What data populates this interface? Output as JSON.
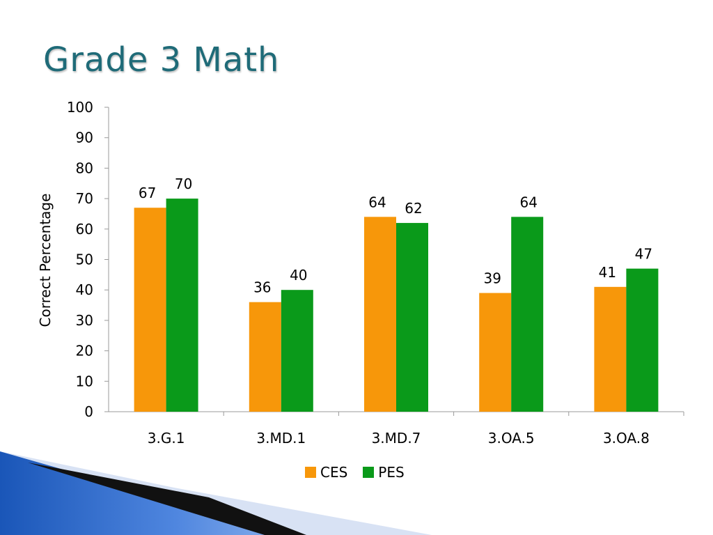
{
  "slide": {
    "title": "Grade 3 Math"
  },
  "colors": {
    "title": "#1f6b78",
    "ces": "#f7970a",
    "pes": "#0a9a1a",
    "axis": "#9a9a9a"
  },
  "chart_data": {
    "type": "bar",
    "title": "Grade 3 Math",
    "xlabel": "",
    "ylabel": "Correct Percentage",
    "ylim": [
      0,
      100
    ],
    "yticks": [
      0,
      10,
      20,
      30,
      40,
      50,
      60,
      70,
      80,
      90,
      100
    ],
    "categories": [
      "3.G.1",
      "3.MD.1",
      "3.MD.7",
      "3.OA.5",
      "3.OA.8"
    ],
    "series": [
      {
        "name": "CES",
        "color": "#f7970a",
        "values": [
          67,
          36,
          64,
          39,
          41
        ]
      },
      {
        "name": "PES",
        "color": "#0a9a1a",
        "values": [
          70,
          40,
          62,
          64,
          47
        ]
      }
    ],
    "data_labels": true,
    "grid": false,
    "legend": "bottom"
  }
}
